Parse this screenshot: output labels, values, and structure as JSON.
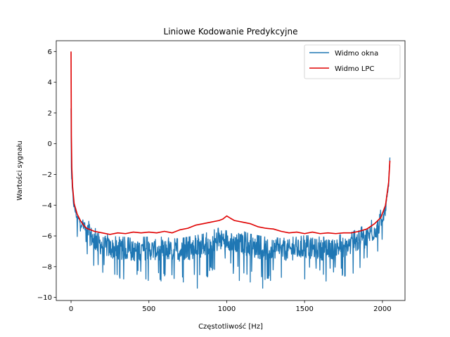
{
  "chart_data": {
    "type": "line",
    "title": "Liniowe Kodowanie Predykcyjne",
    "xlabel": "Częstotliwość [Hz]",
    "ylabel": "Wartości sygnału",
    "xlim": [
      -95,
      2145
    ],
    "ylim": [
      -10.2,
      6.7
    ],
    "xticks": [
      0,
      500,
      1000,
      1500,
      2000
    ],
    "yticks": [
      -10,
      -8,
      -6,
      -4,
      -2,
      0,
      2,
      4,
      6
    ],
    "xtick_labels": [
      "0",
      "500",
      "1000",
      "1500",
      "2000"
    ],
    "ytick_labels": [
      "−10",
      "−8",
      "−6",
      "−4",
      "−2",
      "0",
      "2",
      "4",
      "6"
    ],
    "grid": false,
    "legend_position": "upper-right",
    "series": [
      {
        "name": "Widmo okna",
        "color": "#1f77b4",
        "description": "noisy magnitude spectrum, ~2048 points",
        "x": [
          0,
          2,
          5,
          10,
          20,
          40,
          60,
          80,
          100,
          150,
          200,
          250,
          300,
          350,
          400,
          450,
          500,
          550,
          600,
          650,
          700,
          750,
          800,
          850,
          900,
          950,
          1000,
          1024,
          1050,
          1100,
          1150,
          1200,
          1250,
          1300,
          1350,
          1400,
          1450,
          1500,
          1550,
          1600,
          1650,
          1700,
          1750,
          1800,
          1850,
          1900,
          1950,
          2000,
          2020,
          2040,
          2048
        ],
        "y": [
          2.3,
          -1.5,
          -2.5,
          -3.3,
          -4.1,
          -4.8,
          -5.1,
          -5.4,
          -5.7,
          -6.3,
          -6.6,
          -6.8,
          -6.9,
          -6.9,
          -7.0,
          -6.9,
          -6.9,
          -6.9,
          -6.9,
          -7.0,
          -7.0,
          -6.9,
          -6.8,
          -6.7,
          -6.5,
          -6.3,
          -6.2,
          -6.3,
          -6.4,
          -6.5,
          -6.7,
          -6.8,
          -6.9,
          -6.9,
          -7.0,
          -6.9,
          -6.9,
          -6.8,
          -6.8,
          -6.9,
          -6.9,
          -6.8,
          -6.7,
          -6.6,
          -6.3,
          -6.1,
          -5.6,
          -5.0,
          -4.3,
          -2.8,
          -0.9
        ],
        "min_dips": [
          [
            280,
            -8.5
          ],
          [
            480,
            -8.8
          ],
          [
            600,
            -8.6
          ],
          [
            720,
            -9.0
          ],
          [
            810,
            -9.4
          ],
          [
            870,
            -8.6
          ],
          [
            1080,
            -8.9
          ],
          [
            1150,
            -9.0
          ],
          [
            1230,
            -9.4
          ],
          [
            1280,
            -8.9
          ],
          [
            1350,
            -8.7
          ],
          [
            1500,
            -8.8
          ],
          [
            1620,
            -8.5
          ],
          [
            1760,
            -8.6
          ]
        ]
      },
      {
        "name": "Widmo LPC",
        "color": "#e00000",
        "x": [
          0,
          2,
          5,
          10,
          20,
          40,
          60,
          80,
          100,
          150,
          200,
          250,
          300,
          350,
          400,
          450,
          500,
          550,
          600,
          650,
          700,
          750,
          800,
          850,
          900,
          950,
          975,
          1000,
          1024,
          1050,
          1100,
          1150,
          1200,
          1250,
          1300,
          1350,
          1400,
          1450,
          1500,
          1550,
          1600,
          1650,
          1700,
          1750,
          1800,
          1850,
          1900,
          1950,
          1990,
          2020,
          2040,
          2048
        ],
        "y": [
          6.0,
          0.5,
          -1.6,
          -2.8,
          -3.9,
          -4.6,
          -5.0,
          -5.3,
          -5.5,
          -5.7,
          -5.8,
          -5.9,
          -5.8,
          -5.85,
          -5.75,
          -5.8,
          -5.75,
          -5.8,
          -5.7,
          -5.8,
          -5.6,
          -5.5,
          -5.3,
          -5.2,
          -5.1,
          -5.0,
          -4.9,
          -4.7,
          -4.85,
          -5.0,
          -5.1,
          -5.2,
          -5.4,
          -5.5,
          -5.55,
          -5.7,
          -5.8,
          -5.75,
          -5.85,
          -5.75,
          -5.85,
          -5.8,
          -5.85,
          -5.8,
          -5.8,
          -5.7,
          -5.55,
          -5.2,
          -4.8,
          -4.0,
          -2.5,
          -1.1
        ]
      }
    ]
  }
}
